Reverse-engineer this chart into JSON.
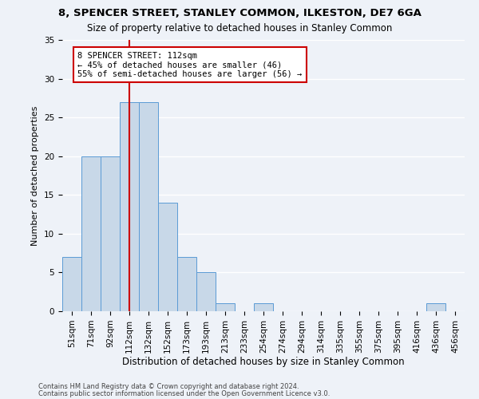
{
  "title_line1": "8, SPENCER STREET, STANLEY COMMON, ILKESTON, DE7 6GA",
  "title_line2": "Size of property relative to detached houses in Stanley Common",
  "xlabel": "Distribution of detached houses by size in Stanley Common",
  "ylabel": "Number of detached properties",
  "footnote1": "Contains HM Land Registry data © Crown copyright and database right 2024.",
  "footnote2": "Contains public sector information licensed under the Open Government Licence v3.0.",
  "bar_labels": [
    "51sqm",
    "71sqm",
    "92sqm",
    "112sqm",
    "132sqm",
    "152sqm",
    "173sqm",
    "193sqm",
    "213sqm",
    "233sqm",
    "254sqm",
    "274sqm",
    "294sqm",
    "314sqm",
    "335sqm",
    "355sqm",
    "375sqm",
    "395sqm",
    "416sqm",
    "436sqm",
    "456sqm"
  ],
  "bar_values": [
    7,
    20,
    20,
    27,
    27,
    14,
    7,
    5,
    1,
    0,
    1,
    0,
    0,
    0,
    0,
    0,
    0,
    0,
    0,
    1,
    0
  ],
  "bar_color": "#c8d8e8",
  "bar_edge_color": "#5b9bd5",
  "subject_line_label": "8 SPENCER STREET: 112sqm",
  "annotation_line1": "← 45% of detached houses are smaller (46)",
  "annotation_line2": "55% of semi-detached houses are larger (56) →",
  "annotation_box_color": "#ffffff",
  "annotation_box_edge_color": "#cc0000",
  "subject_line_color": "#cc0000",
  "ylim": [
    0,
    35
  ],
  "yticks": [
    0,
    5,
    10,
    15,
    20,
    25,
    30,
    35
  ],
  "background_color": "#eef2f8",
  "grid_color": "#ffffff",
  "title1_fontsize": 9.5,
  "title2_fontsize": 8.5,
  "xlabel_fontsize": 8.5,
  "ylabel_fontsize": 8,
  "tick_fontsize": 7.5,
  "annot_fontsize": 7.5,
  "footnote_fontsize": 6
}
